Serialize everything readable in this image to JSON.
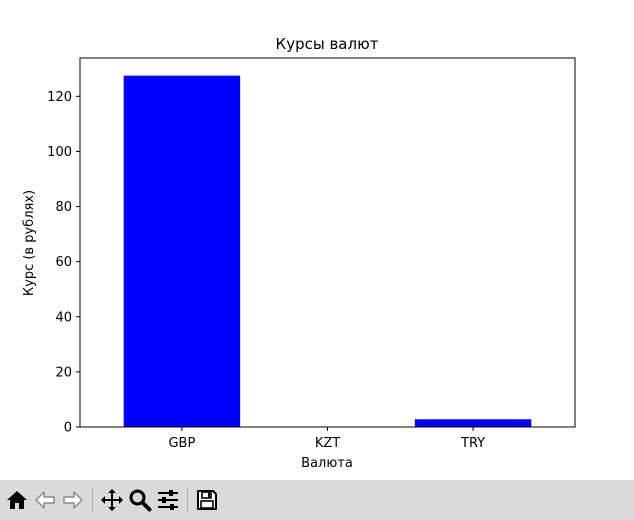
{
  "chart_data": {
    "type": "bar",
    "title": "Курсы валют",
    "xlabel": "Валюта",
    "ylabel": "Курс (в рублях)",
    "categories": [
      "GBP",
      "KZT",
      "TRY"
    ],
    "values": [
      127.5,
      0.17,
      2.8
    ],
    "ylim": [
      0,
      133.9
    ],
    "yticks": [
      0,
      20,
      40,
      60,
      80,
      100,
      120
    ],
    "bar_color": "#0000ff",
    "grid": false
  },
  "toolbar": {
    "buttons": [
      {
        "name": "home-icon",
        "enabled": true
      },
      {
        "name": "back-icon",
        "enabled": false
      },
      {
        "name": "forward-icon",
        "enabled": false
      },
      {
        "name": "pan-icon",
        "enabled": true
      },
      {
        "name": "zoom-icon",
        "enabled": true
      },
      {
        "name": "configure-subplots-icon",
        "enabled": true
      },
      {
        "name": "save-icon",
        "enabled": true
      }
    ]
  }
}
